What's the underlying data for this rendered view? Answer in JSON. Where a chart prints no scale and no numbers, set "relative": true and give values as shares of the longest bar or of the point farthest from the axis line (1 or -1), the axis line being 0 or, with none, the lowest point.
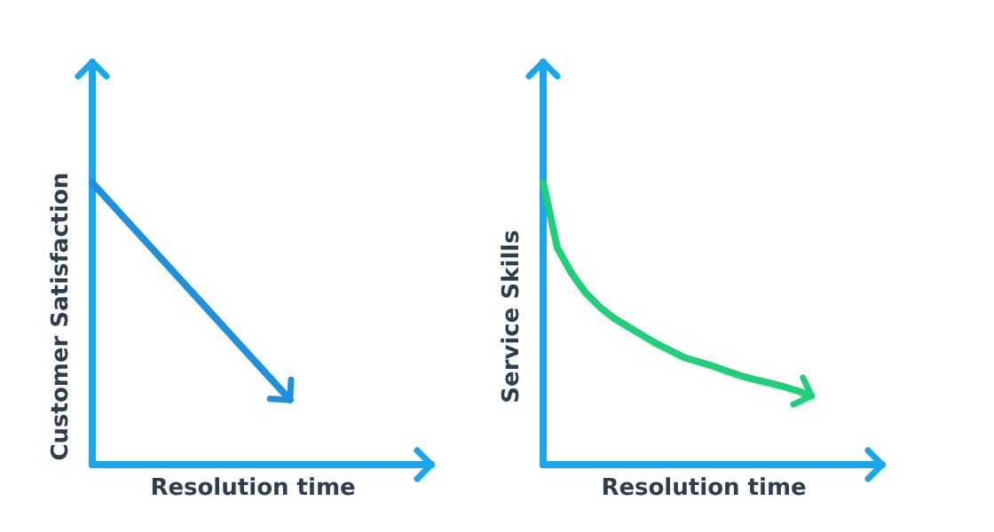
{
  "chart_data": [
    {
      "type": "line",
      "relative": true,
      "xlabel": "Resolution time",
      "ylabel": "Customer Satisfaction",
      "categories": [
        null,
        null,
        null,
        null,
        null,
        null,
        null,
        null,
        null,
        null,
        null,
        null,
        null,
        null,
        null,
        null,
        null,
        null,
        null,
        null,
        null,
        null,
        null,
        null,
        null
      ],
      "marker": "none",
      "line_style": "solid",
      "series": [
        {
          "color": "#1e90dc",
          "values": [
            1,
            0.945,
            0.89,
            0.835,
            0.78,
            0.725,
            0.67,
            0.615,
            0.56,
            0.505,
            0.45,
            0.395,
            0.34,
            0.285,
            0.23,
            null,
            null,
            null,
            null,
            null,
            null,
            null,
            null,
            null,
            null
          ]
        }
      ]
    },
    {
      "type": "line",
      "relative": true,
      "xlabel": "Resolution time",
      "ylabel": "Service Skills",
      "categories": [
        null,
        null,
        null,
        null,
        null,
        null,
        null,
        null,
        null,
        null,
        null,
        null,
        null,
        null,
        null,
        null,
        null,
        null,
        null,
        null,
        null,
        null,
        null,
        null,
        null
      ],
      "marker": "none",
      "line_style": "solid",
      "series": [
        {
          "color": "#1fcf7a",
          "values": [
            1,
            0.77,
            0.68,
            0.61,
            0.56,
            0.52,
            0.49,
            0.46,
            0.43,
            0.405,
            0.38,
            0.365,
            0.35,
            0.332,
            0.315,
            0.302,
            0.29,
            0.277,
            0.262,
            0.244,
            null,
            null,
            null,
            null,
            null
          ]
        }
      ]
    }
  ]
}
